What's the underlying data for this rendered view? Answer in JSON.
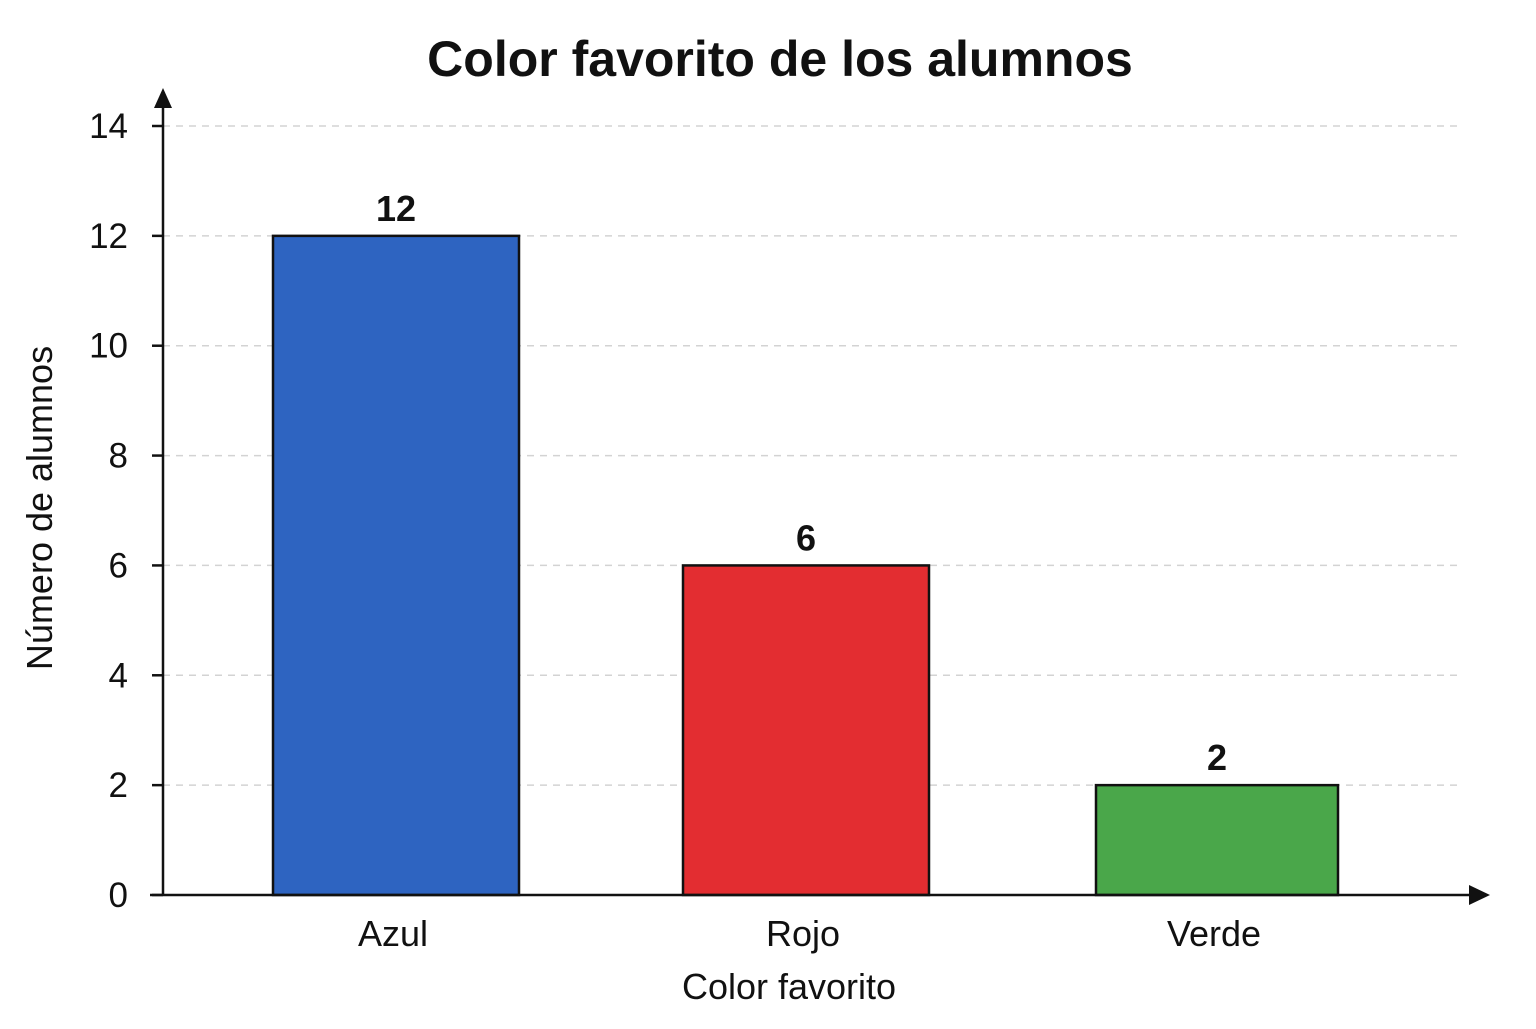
{
  "chart_data": {
    "type": "bar",
    "title": "Color favorito de los alumnos",
    "xlabel": "Color favorito",
    "ylabel": "Número de alumnos",
    "categories": [
      "Azul",
      "Rojo",
      "Verde"
    ],
    "values": [
      12,
      6,
      2
    ],
    "colors": [
      "#2e64c1",
      "#e32d31",
      "#4aa74a"
    ],
    "data_labels": [
      "12",
      "6",
      "2"
    ],
    "ylim": [
      0,
      14
    ],
    "yticks": [
      0,
      2,
      4,
      6,
      8,
      10,
      12,
      14
    ],
    "ytick_labels": [
      "0",
      "2",
      "4",
      "6",
      "8",
      "10",
      "12",
      "14"
    ],
    "grid": true,
    "legend": "none"
  }
}
